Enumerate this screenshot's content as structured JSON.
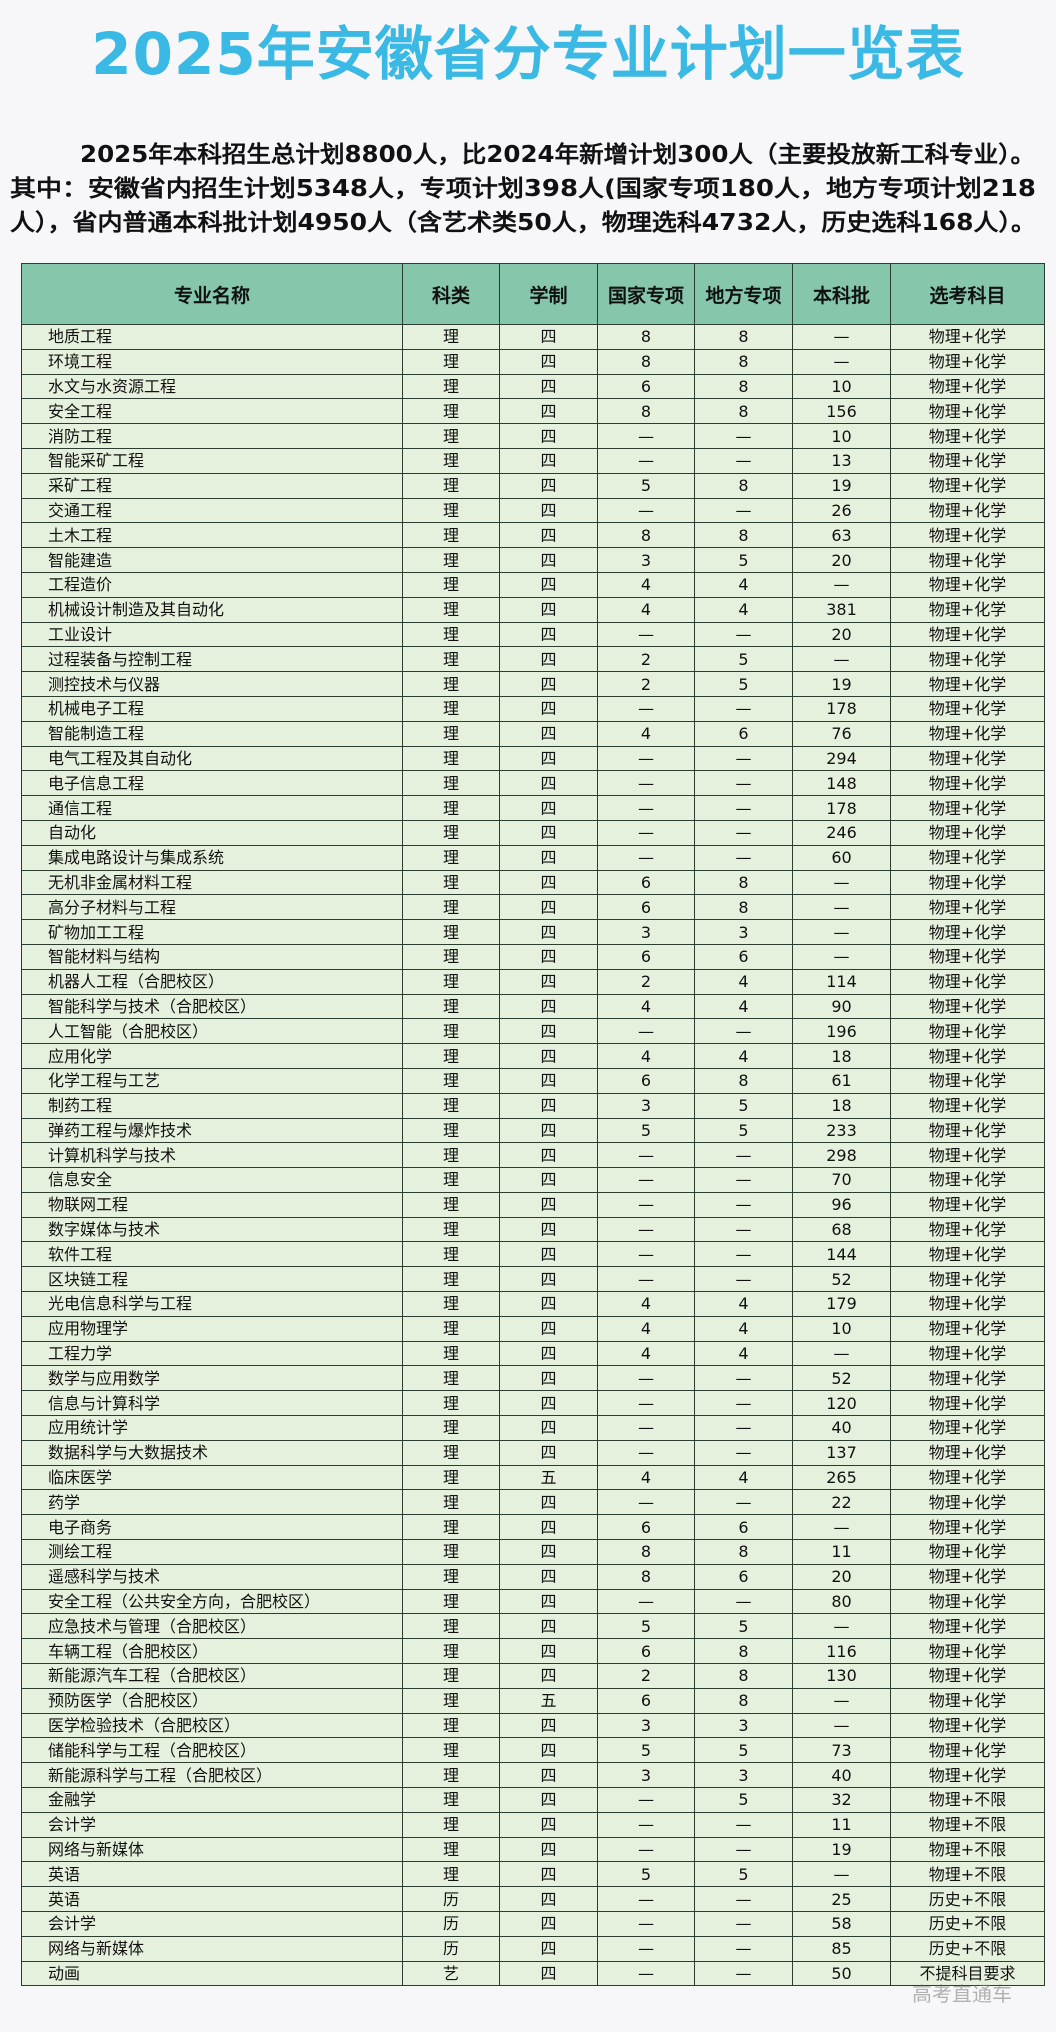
{
  "title": "2025年安徽省分专业计划一览表",
  "intro_lines": [
    "2025年本科招生总计划8800人，比2024年新增计划300人（主要投放新工科专业）。",
    "其中：安徽省内招生计划5348人，专项计划398人(国家专项180人，地方专项计划218",
    "人），省内普通本科批计划4950人（含艺术类50人，物理选科4732人，历史选科168人）。"
  ],
  "colors": {
    "title": "#39b9e4",
    "header_bg": "#86c7ab",
    "row_bg": "#e6f1dd",
    "border": "#2a3d30"
  },
  "table": {
    "headers": [
      "专业名称",
      "科类",
      "学制",
      "国家专项",
      "地方专项",
      "本科批",
      "选考科目"
    ],
    "rows": [
      [
        "地质工程",
        "理",
        "四",
        "8",
        "8",
        "—",
        "物理+化学"
      ],
      [
        "环境工程",
        "理",
        "四",
        "8",
        "8",
        "—",
        "物理+化学"
      ],
      [
        "水文与水资源工程",
        "理",
        "四",
        "6",
        "8",
        "10",
        "物理+化学"
      ],
      [
        "安全工程",
        "理",
        "四",
        "8",
        "8",
        "156",
        "物理+化学"
      ],
      [
        "消防工程",
        "理",
        "四",
        "—",
        "—",
        "10",
        "物理+化学"
      ],
      [
        "智能采矿工程",
        "理",
        "四",
        "—",
        "—",
        "13",
        "物理+化学"
      ],
      [
        "采矿工程",
        "理",
        "四",
        "5",
        "8",
        "19",
        "物理+化学"
      ],
      [
        "交通工程",
        "理",
        "四",
        "—",
        "—",
        "26",
        "物理+化学"
      ],
      [
        "土木工程",
        "理",
        "四",
        "8",
        "8",
        "63",
        "物理+化学"
      ],
      [
        "智能建造",
        "理",
        "四",
        "3",
        "5",
        "20",
        "物理+化学"
      ],
      [
        "工程造价",
        "理",
        "四",
        "4",
        "4",
        "—",
        "物理+化学"
      ],
      [
        "机械设计制造及其自动化",
        "理",
        "四",
        "4",
        "4",
        "381",
        "物理+化学"
      ],
      [
        "工业设计",
        "理",
        "四",
        "—",
        "—",
        "20",
        "物理+化学"
      ],
      [
        "过程装备与控制工程",
        "理",
        "四",
        "2",
        "5",
        "—",
        "物理+化学"
      ],
      [
        "测控技术与仪器",
        "理",
        "四",
        "2",
        "5",
        "19",
        "物理+化学"
      ],
      [
        "机械电子工程",
        "理",
        "四",
        "—",
        "—",
        "178",
        "物理+化学"
      ],
      [
        "智能制造工程",
        "理",
        "四",
        "4",
        "6",
        "76",
        "物理+化学"
      ],
      [
        "电气工程及其自动化",
        "理",
        "四",
        "—",
        "—",
        "294",
        "物理+化学"
      ],
      [
        "电子信息工程",
        "理",
        "四",
        "—",
        "—",
        "148",
        "物理+化学"
      ],
      [
        "通信工程",
        "理",
        "四",
        "—",
        "—",
        "178",
        "物理+化学"
      ],
      [
        "自动化",
        "理",
        "四",
        "—",
        "—",
        "246",
        "物理+化学"
      ],
      [
        "集成电路设计与集成系统",
        "理",
        "四",
        "—",
        "—",
        "60",
        "物理+化学"
      ],
      [
        "无机非金属材料工程",
        "理",
        "四",
        "6",
        "8",
        "—",
        "物理+化学"
      ],
      [
        "高分子材料与工程",
        "理",
        "四",
        "6",
        "8",
        "—",
        "物理+化学"
      ],
      [
        "矿物加工工程",
        "理",
        "四",
        "3",
        "3",
        "—",
        "物理+化学"
      ],
      [
        "智能材料与结构",
        "理",
        "四",
        "6",
        "6",
        "—",
        "物理+化学"
      ],
      [
        "机器人工程（合肥校区）",
        "理",
        "四",
        "2",
        "4",
        "114",
        "物理+化学"
      ],
      [
        "智能科学与技术（合肥校区）",
        "理",
        "四",
        "4",
        "4",
        "90",
        "物理+化学"
      ],
      [
        "人工智能（合肥校区）",
        "理",
        "四",
        "—",
        "—",
        "196",
        "物理+化学"
      ],
      [
        "应用化学",
        "理",
        "四",
        "4",
        "4",
        "18",
        "物理+化学"
      ],
      [
        "化学工程与工艺",
        "理",
        "四",
        "6",
        "8",
        "61",
        "物理+化学"
      ],
      [
        "制药工程",
        "理",
        "四",
        "3",
        "5",
        "18",
        "物理+化学"
      ],
      [
        "弹药工程与爆炸技术",
        "理",
        "四",
        "5",
        "5",
        "233",
        "物理+化学"
      ],
      [
        "计算机科学与技术",
        "理",
        "四",
        "—",
        "—",
        "298",
        "物理+化学"
      ],
      [
        "信息安全",
        "理",
        "四",
        "—",
        "—",
        "70",
        "物理+化学"
      ],
      [
        "物联网工程",
        "理",
        "四",
        "—",
        "—",
        "96",
        "物理+化学"
      ],
      [
        "数字媒体与技术",
        "理",
        "四",
        "—",
        "—",
        "68",
        "物理+化学"
      ],
      [
        "软件工程",
        "理",
        "四",
        "—",
        "—",
        "144",
        "物理+化学"
      ],
      [
        "区块链工程",
        "理",
        "四",
        "—",
        "—",
        "52",
        "物理+化学"
      ],
      [
        "光电信息科学与工程",
        "理",
        "四",
        "4",
        "4",
        "179",
        "物理+化学"
      ],
      [
        "应用物理学",
        "理",
        "四",
        "4",
        "4",
        "10",
        "物理+化学"
      ],
      [
        "工程力学",
        "理",
        "四",
        "4",
        "4",
        "—",
        "物理+化学"
      ],
      [
        "数学与应用数学",
        "理",
        "四",
        "—",
        "—",
        "52",
        "物理+化学"
      ],
      [
        "信息与计算科学",
        "理",
        "四",
        "—",
        "—",
        "120",
        "物理+化学"
      ],
      [
        "应用统计学",
        "理",
        "四",
        "—",
        "—",
        "40",
        "物理+化学"
      ],
      [
        "数据科学与大数据技术",
        "理",
        "四",
        "—",
        "—",
        "137",
        "物理+化学"
      ],
      [
        "临床医学",
        "理",
        "五",
        "4",
        "4",
        "265",
        "物理+化学"
      ],
      [
        "药学",
        "理",
        "四",
        "—",
        "—",
        "22",
        "物理+化学"
      ],
      [
        "电子商务",
        "理",
        "四",
        "6",
        "6",
        "—",
        "物理+化学"
      ],
      [
        "测绘工程",
        "理",
        "四",
        "8",
        "8",
        "11",
        "物理+化学"
      ],
      [
        "遥感科学与技术",
        "理",
        "四",
        "8",
        "6",
        "20",
        "物理+化学"
      ],
      [
        "安全工程（公共安全方向，合肥校区）",
        "理",
        "四",
        "—",
        "—",
        "80",
        "物理+化学"
      ],
      [
        "应急技术与管理（合肥校区）",
        "理",
        "四",
        "5",
        "5",
        "—",
        "物理+化学"
      ],
      [
        "车辆工程（合肥校区）",
        "理",
        "四",
        "6",
        "8",
        "116",
        "物理+化学"
      ],
      [
        "新能源汽车工程（合肥校区）",
        "理",
        "四",
        "2",
        "8",
        "130",
        "物理+化学"
      ],
      [
        "预防医学（合肥校区）",
        "理",
        "五",
        "6",
        "8",
        "—",
        "物理+化学"
      ],
      [
        "医学检验技术（合肥校区）",
        "理",
        "四",
        "3",
        "3",
        "—",
        "物理+化学"
      ],
      [
        "储能科学与工程（合肥校区）",
        "理",
        "四",
        "5",
        "5",
        "73",
        "物理+化学"
      ],
      [
        "新能源科学与工程（合肥校区）",
        "理",
        "四",
        "3",
        "3",
        "40",
        "物理+化学"
      ],
      [
        "金融学",
        "理",
        "四",
        "—",
        "5",
        "32",
        "物理+不限"
      ],
      [
        "会计学",
        "理",
        "四",
        "—",
        "—",
        "11",
        "物理+不限"
      ],
      [
        "网络与新媒体",
        "理",
        "四",
        "—",
        "—",
        "19",
        "物理+不限"
      ],
      [
        "英语",
        "理",
        "四",
        "5",
        "5",
        "—",
        "物理+不限"
      ],
      [
        "英语",
        "历",
        "四",
        "—",
        "—",
        "25",
        "历史+不限"
      ],
      [
        "会计学",
        "历",
        "四",
        "—",
        "—",
        "58",
        "历史+不限"
      ],
      [
        "网络与新媒体",
        "历",
        "四",
        "—",
        "—",
        "85",
        "历史+不限"
      ],
      [
        "动画",
        "艺",
        "四",
        "—",
        "—",
        "50",
        "不提科目要求"
      ]
    ]
  },
  "watermark": "高考直通车"
}
